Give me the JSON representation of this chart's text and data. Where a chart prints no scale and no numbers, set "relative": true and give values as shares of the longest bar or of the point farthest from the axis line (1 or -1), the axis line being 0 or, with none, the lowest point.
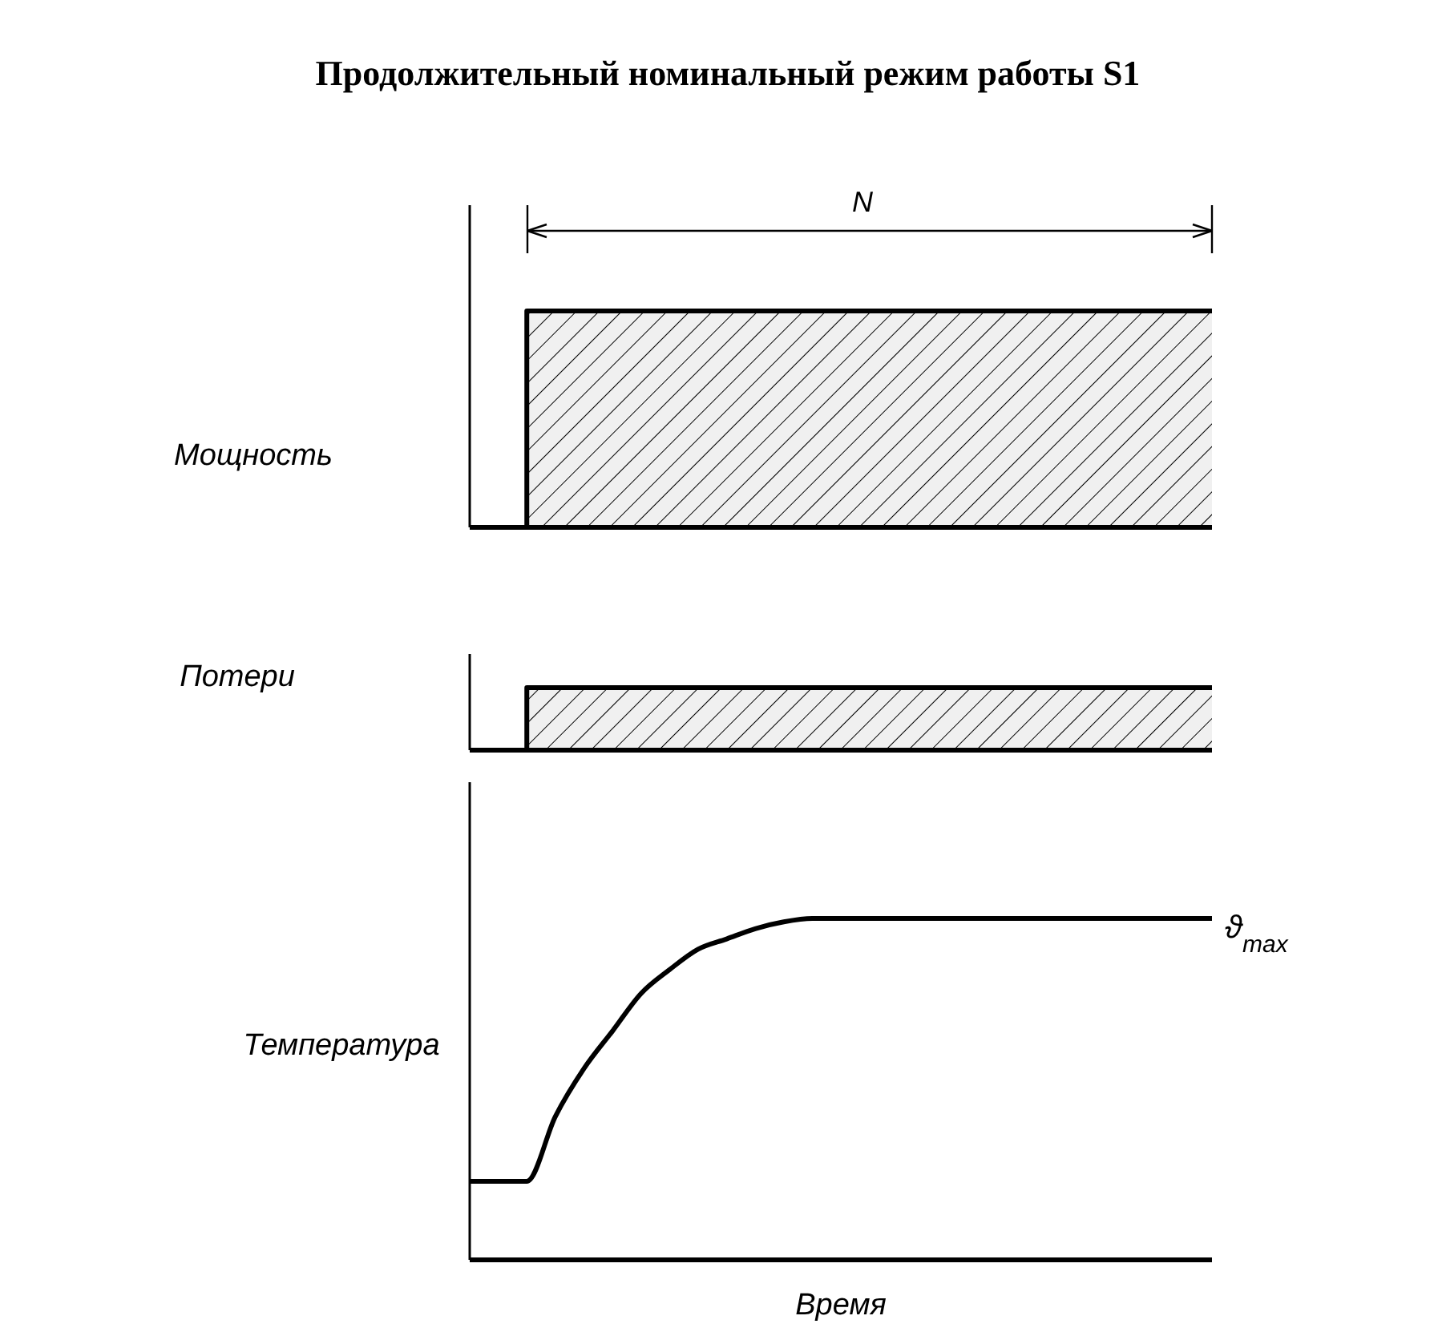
{
  "chart_data": [
    {
      "type": "step",
      "title": "Продолжительный номинальный режим работы S1",
      "ylabel": "Мощность",
      "relative": true,
      "annotations": [
        "N"
      ],
      "categories": [
        null,
        null,
        null,
        null,
        null,
        null,
        null,
        null,
        null,
        null,
        null,
        null,
        null,
        null,
        null,
        null,
        null,
        null,
        null,
        null,
        null,
        null,
        null,
        null,
        null,
        null,
        null
      ],
      "series": [
        {
          "color": "#000000",
          "values": [
            0,
            0,
            1,
            1,
            1,
            1,
            1,
            1,
            1,
            1,
            1,
            1,
            1,
            1,
            1,
            1,
            1,
            1,
            1,
            1,
            1,
            1,
            1,
            1,
            1,
            1,
            1
          ]
        }
      ]
    },
    {
      "type": "step",
      "ylabel": "Потери",
      "relative": true,
      "categories": [
        null,
        null,
        null,
        null,
        null,
        null,
        null,
        null,
        null,
        null,
        null,
        null,
        null,
        null,
        null,
        null,
        null,
        null,
        null,
        null,
        null,
        null,
        null,
        null,
        null,
        null,
        null
      ],
      "series": [
        {
          "color": "#000000",
          "values": [
            0,
            0,
            1,
            1,
            1,
            1,
            1,
            1,
            1,
            1,
            1,
            1,
            1,
            1,
            1,
            1,
            1,
            1,
            1,
            1,
            1,
            1,
            1,
            1,
            1,
            1,
            1
          ]
        }
      ]
    },
    {
      "type": "line",
      "ylabel": "Температура",
      "xlabel": "Время",
      "relative": true,
      "annotations": [
        "ϑ$_{max}$"
      ],
      "categories": [
        null,
        null,
        null,
        null,
        null,
        null,
        null,
        null,
        null,
        null,
        null,
        null,
        null,
        null,
        null,
        null,
        null,
        null,
        null,
        null,
        null,
        null,
        null,
        null,
        null,
        null,
        null
      ],
      "series": [
        {
          "color": "#000000",
          "values": [
            0.23,
            0.23,
            0.23,
            0.42,
            0.56,
            0.67,
            0.78,
            0.85,
            0.91,
            0.94,
            0.97,
            0.99,
            1,
            1,
            1,
            1,
            1,
            1,
            1,
            1,
            1,
            1,
            1,
            1,
            1,
            1,
            1
          ]
        }
      ]
    }
  ]
}
